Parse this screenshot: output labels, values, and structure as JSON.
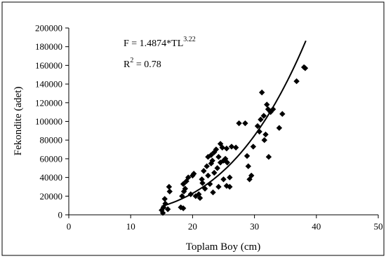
{
  "chart_data": {
    "type": "scatter",
    "title": "",
    "xlabel": "Toplam Boy (cm)",
    "ylabel": "Fekondite (adet)",
    "xlim": [
      0,
      50
    ],
    "ylim": [
      0,
      200000
    ],
    "x_ticks": [
      0,
      10,
      20,
      30,
      40,
      50
    ],
    "y_ticks": [
      0,
      20000,
      40000,
      60000,
      80000,
      100000,
      120000,
      140000,
      160000,
      180000,
      200000
    ],
    "grid": false,
    "legend": "none",
    "annotations": {
      "equation_prefix": "F = 1.4874*TL",
      "equation_exponent": "3.22",
      "r2_prefix": "R",
      "r2_exponent": "2",
      "r2_suffix": " = 0.78"
    },
    "fit": {
      "a": 1.4874,
      "b": 3.22,
      "x_start": 15,
      "x_end": 38.3
    },
    "points": [
      {
        "x": 15.0,
        "y": 5000
      },
      {
        "x": 15.2,
        "y": 2000
      },
      {
        "x": 15.3,
        "y": 8000
      },
      {
        "x": 15.6,
        "y": 12000
      },
      {
        "x": 15.5,
        "y": 17000
      },
      {
        "x": 16.0,
        "y": 6000
      },
      {
        "x": 16.3,
        "y": 25000
      },
      {
        "x": 16.2,
        "y": 30000
      },
      {
        "x": 18.1,
        "y": 8000
      },
      {
        "x": 18.5,
        "y": 7000
      },
      {
        "x": 18.3,
        "y": 20000
      },
      {
        "x": 18.6,
        "y": 25000
      },
      {
        "x": 18.8,
        "y": 28000
      },
      {
        "x": 18.5,
        "y": 33000
      },
      {
        "x": 19.0,
        "y": 36000
      },
      {
        "x": 19.3,
        "y": 40000
      },
      {
        "x": 19.7,
        "y": 22000
      },
      {
        "x": 20.0,
        "y": 42000
      },
      {
        "x": 20.2,
        "y": 44000
      },
      {
        "x": 20.5,
        "y": 20000
      },
      {
        "x": 21.0,
        "y": 22000
      },
      {
        "x": 21.2,
        "y": 18000
      },
      {
        "x": 21.5,
        "y": 38000
      },
      {
        "x": 21.6,
        "y": 34000
      },
      {
        "x": 21.8,
        "y": 47000
      },
      {
        "x": 22.0,
        "y": 28000
      },
      {
        "x": 22.3,
        "y": 52000
      },
      {
        "x": 22.5,
        "y": 42000
      },
      {
        "x": 22.5,
        "y": 62000
      },
      {
        "x": 22.8,
        "y": 33000
      },
      {
        "x": 23.0,
        "y": 55000
      },
      {
        "x": 23.0,
        "y": 64000
      },
      {
        "x": 23.2,
        "y": 58000
      },
      {
        "x": 23.3,
        "y": 24000
      },
      {
        "x": 23.5,
        "y": 45000
      },
      {
        "x": 23.5,
        "y": 67000
      },
      {
        "x": 23.8,
        "y": 70000
      },
      {
        "x": 24.0,
        "y": 50000
      },
      {
        "x": 24.2,
        "y": 62000
      },
      {
        "x": 24.2,
        "y": 30000
      },
      {
        "x": 24.5,
        "y": 56000
      },
      {
        "x": 24.5,
        "y": 76000
      },
      {
        "x": 24.8,
        "y": 72000
      },
      {
        "x": 25.0,
        "y": 38000
      },
      {
        "x": 25.0,
        "y": 58000
      },
      {
        "x": 25.3,
        "y": 60000
      },
      {
        "x": 25.5,
        "y": 71000
      },
      {
        "x": 25.6,
        "y": 56000
      },
      {
        "x": 25.5,
        "y": 31000
      },
      {
        "x": 26.0,
        "y": 30000
      },
      {
        "x": 26.0,
        "y": 40000
      },
      {
        "x": 26.3,
        "y": 73000
      },
      {
        "x": 27.0,
        "y": 72000
      },
      {
        "x": 27.5,
        "y": 98000
      },
      {
        "x": 28.5,
        "y": 98000
      },
      {
        "x": 28.8,
        "y": 63000
      },
      {
        "x": 29.0,
        "y": 52000
      },
      {
        "x": 29.2,
        "y": 38000
      },
      {
        "x": 29.5,
        "y": 42000
      },
      {
        "x": 29.8,
        "y": 73000
      },
      {
        "x": 30.5,
        "y": 95000
      },
      {
        "x": 30.8,
        "y": 89000
      },
      {
        "x": 31.0,
        "y": 102000
      },
      {
        "x": 31.2,
        "y": 131000
      },
      {
        "x": 31.5,
        "y": 106000
      },
      {
        "x": 31.6,
        "y": 80000
      },
      {
        "x": 31.8,
        "y": 86000
      },
      {
        "x": 32.0,
        "y": 118000
      },
      {
        "x": 32.2,
        "y": 113000
      },
      {
        "x": 32.3,
        "y": 62000
      },
      {
        "x": 32.6,
        "y": 110000
      },
      {
        "x": 33.0,
        "y": 113000
      },
      {
        "x": 34.0,
        "y": 93000
      },
      {
        "x": 34.5,
        "y": 108000
      },
      {
        "x": 36.8,
        "y": 143000
      },
      {
        "x": 38.0,
        "y": 158000
      },
      {
        "x": 38.2,
        "y": 157000
      }
    ]
  }
}
